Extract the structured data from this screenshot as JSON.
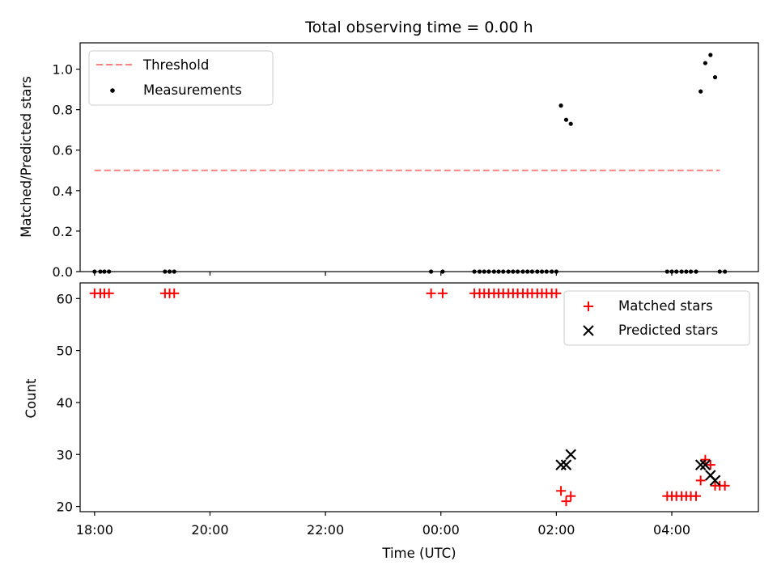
{
  "figure": {
    "title": "Total observing time = 0.00 h"
  },
  "chart_data": [
    {
      "type": "scatter",
      "title": "Total observing time = 0.00 h",
      "xlabel": "",
      "ylabel": "Matched/Predicted stars",
      "xlim": [
        -0.25,
        11.5
      ],
      "ylim": [
        0.0,
        1.13
      ],
      "yticks": [
        "0.0",
        "0.2",
        "0.4",
        "0.6",
        "0.8",
        "1.0"
      ],
      "xtick_positions": [
        0,
        2,
        4,
        6,
        8,
        10
      ],
      "legend_position": "top-left",
      "threshold": {
        "name": "Threshold",
        "value": 0.5,
        "x": [
          0,
          10.83
        ],
        "color": "#ff7f7f",
        "style": "dashed"
      },
      "series": [
        {
          "name": "Measurements",
          "color": "#000000",
          "points": [
            [
              0.0,
              0.0
            ],
            [
              0.1,
              0.0
            ],
            [
              0.17,
              0.0
            ],
            [
              0.25,
              0.0
            ],
            [
              1.22,
              0.0
            ],
            [
              1.3,
              0.0
            ],
            [
              1.38,
              0.0
            ],
            [
              5.83,
              0.0
            ],
            [
              6.03,
              0.0
            ],
            [
              6.58,
              0.0
            ],
            [
              6.67,
              0.0
            ],
            [
              6.75,
              0.0
            ],
            [
              6.83,
              0.0
            ],
            [
              6.92,
              0.0
            ],
            [
              7.0,
              0.0
            ],
            [
              7.08,
              0.0
            ],
            [
              7.17,
              0.0
            ],
            [
              7.25,
              0.0
            ],
            [
              7.33,
              0.0
            ],
            [
              7.42,
              0.0
            ],
            [
              7.5,
              0.0
            ],
            [
              7.58,
              0.0
            ],
            [
              7.67,
              0.0
            ],
            [
              7.75,
              0.0
            ],
            [
              7.83,
              0.0
            ],
            [
              7.92,
              0.0
            ],
            [
              8.0,
              0.0
            ],
            [
              8.08,
              0.82
            ],
            [
              8.17,
              0.75
            ],
            [
              8.25,
              0.73
            ],
            [
              9.92,
              0.0
            ],
            [
              10.0,
              0.0
            ],
            [
              10.08,
              0.0
            ],
            [
              10.17,
              0.0
            ],
            [
              10.25,
              0.0
            ],
            [
              10.33,
              0.0
            ],
            [
              10.42,
              0.0
            ],
            [
              10.5,
              0.89
            ],
            [
              10.58,
              1.03
            ],
            [
              10.67,
              1.07
            ],
            [
              10.75,
              0.96
            ],
            [
              10.83,
              0.0
            ],
            [
              10.92,
              0.0
            ]
          ]
        }
      ]
    },
    {
      "type": "scatter",
      "title": "",
      "xlabel": "Time (UTC)",
      "ylabel": "Count",
      "xlim": [
        -0.25,
        11.5
      ],
      "ylim": [
        19.0,
        63.0
      ],
      "yticks": [
        "20",
        "30",
        "40",
        "50",
        "60"
      ],
      "xticks": [
        "18:00",
        "20:00",
        "22:00",
        "00:00",
        "02:00",
        "04:00"
      ],
      "xtick_positions": [
        0,
        2,
        4,
        6,
        8,
        10
      ],
      "legend_position": "top-right",
      "series": [
        {
          "name": "Matched stars",
          "marker": "plus",
          "color": "#ff0000",
          "points": [
            [
              0.0,
              61
            ],
            [
              0.1,
              61
            ],
            [
              0.17,
              61
            ],
            [
              0.25,
              61
            ],
            [
              1.22,
              61
            ],
            [
              1.3,
              61
            ],
            [
              1.38,
              61
            ],
            [
              5.83,
              61
            ],
            [
              6.03,
              61
            ],
            [
              6.58,
              61
            ],
            [
              6.67,
              61
            ],
            [
              6.75,
              61
            ],
            [
              6.83,
              61
            ],
            [
              6.92,
              61
            ],
            [
              7.0,
              61
            ],
            [
              7.08,
              61
            ],
            [
              7.17,
              61
            ],
            [
              7.25,
              61
            ],
            [
              7.33,
              61
            ],
            [
              7.42,
              61
            ],
            [
              7.5,
              61
            ],
            [
              7.58,
              61
            ],
            [
              7.67,
              61
            ],
            [
              7.75,
              61
            ],
            [
              7.83,
              61
            ],
            [
              7.92,
              61
            ],
            [
              8.0,
              61
            ],
            [
              8.08,
              23
            ],
            [
              8.17,
              21
            ],
            [
              8.25,
              22
            ],
            [
              9.92,
              22
            ],
            [
              10.0,
              22
            ],
            [
              10.08,
              22
            ],
            [
              10.17,
              22
            ],
            [
              10.25,
              22
            ],
            [
              10.33,
              22
            ],
            [
              10.42,
              22
            ],
            [
              10.5,
              25
            ],
            [
              10.58,
              29
            ],
            [
              10.67,
              28
            ],
            [
              10.75,
              24
            ],
            [
              10.83,
              24
            ],
            [
              10.92,
              24
            ]
          ]
        },
        {
          "name": "Predicted stars",
          "marker": "x",
          "color": "#000000",
          "points": [
            [
              8.08,
              28
            ],
            [
              8.17,
              28
            ],
            [
              8.25,
              30
            ],
            [
              10.5,
              28
            ],
            [
              10.58,
              28
            ],
            [
              10.67,
              26
            ],
            [
              10.75,
              25
            ]
          ]
        }
      ]
    }
  ]
}
